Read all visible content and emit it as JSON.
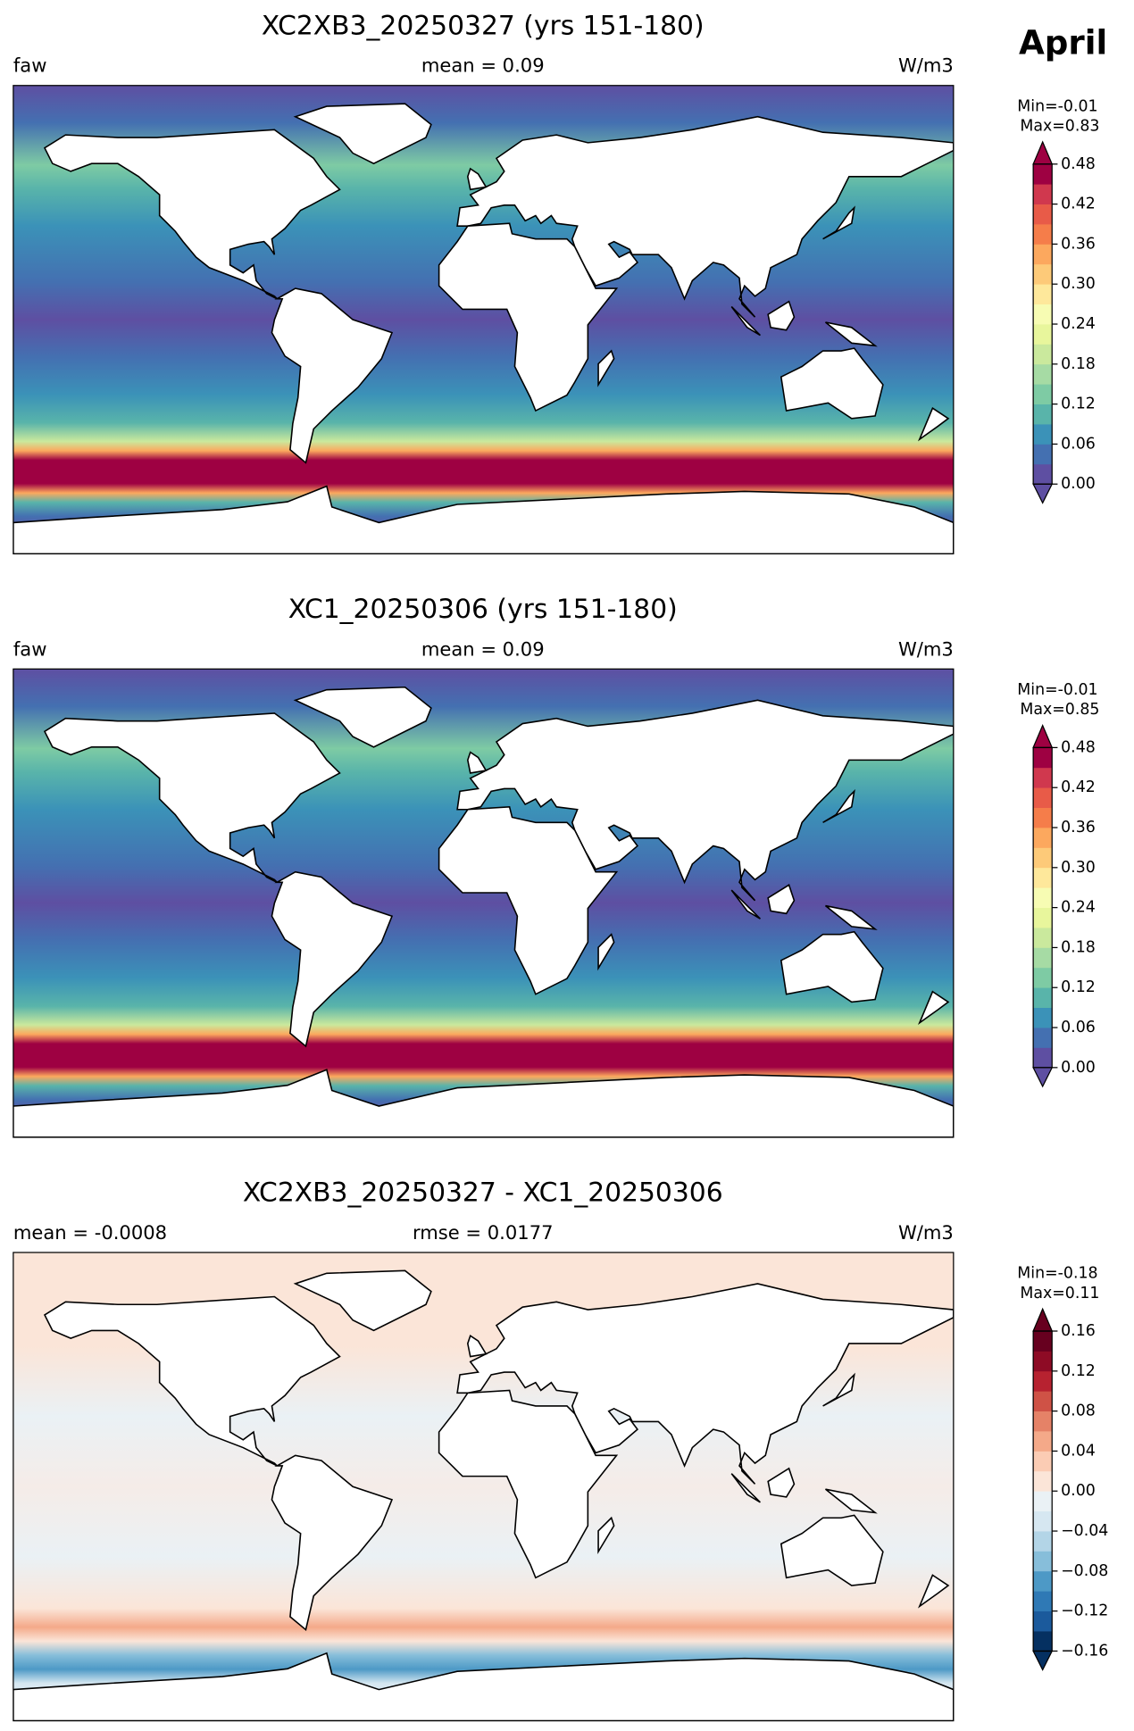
{
  "label": "April",
  "panels": [
    {
      "title": "XC2XB3_20250327 (yrs 151-180)",
      "left": "faw",
      "center": "mean = 0.09",
      "right": "W/m3",
      "min": "Min=-0.01",
      "max": "Max=0.83",
      "colorbar": {
        "lim": [
          0,
          0.48
        ],
        "ticks": [
          {
            "value": 0,
            "label": "0.00"
          },
          {
            "value": 0.06,
            "label": "0.06"
          },
          {
            "value": 0.12,
            "label": "0.12"
          },
          {
            "value": 0.18,
            "label": "0.18"
          },
          {
            "value": 0.24,
            "label": "0.24"
          },
          {
            "value": 0.3,
            "label": "0.30"
          },
          {
            "value": 0.36,
            "label": "0.36"
          },
          {
            "value": 0.42,
            "label": "0.42"
          },
          {
            "value": 0.48,
            "label": "0.48"
          }
        ],
        "colors": [
          "#5e4fa2",
          "#4470b1",
          "#3b92b8",
          "#59b4aa",
          "#7ecba4",
          "#a6dba4",
          "#cae99d",
          "#e8f69c",
          "#f7fcb3",
          "#fee89b",
          "#fdca79",
          "#fca85e",
          "#f57d4a",
          "#e85b48",
          "#d0384e",
          "#9e0142"
        ]
      }
    },
    {
      "title": "XC1_20250306 (yrs 151-180)",
      "left": "faw",
      "center": "mean = 0.09",
      "right": "W/m3",
      "min": "Min=-0.01",
      "max": "Max=0.85",
      "colorbar": {
        "lim": [
          0,
          0.48
        ],
        "ticks": [
          {
            "value": 0,
            "label": "0.00"
          },
          {
            "value": 0.06,
            "label": "0.06"
          },
          {
            "value": 0.12,
            "label": "0.12"
          },
          {
            "value": 0.18,
            "label": "0.18"
          },
          {
            "value": 0.24,
            "label": "0.24"
          },
          {
            "value": 0.3,
            "label": "0.30"
          },
          {
            "value": 0.36,
            "label": "0.36"
          },
          {
            "value": 0.42,
            "label": "0.42"
          },
          {
            "value": 0.48,
            "label": "0.48"
          }
        ],
        "colors": [
          "#5e4fa2",
          "#4470b1",
          "#3b92b8",
          "#59b4aa",
          "#7ecba4",
          "#a6dba4",
          "#cae99d",
          "#e8f69c",
          "#f7fcb3",
          "#fee89b",
          "#fdca79",
          "#fca85e",
          "#f57d4a",
          "#e85b48",
          "#d0384e",
          "#9e0142"
        ]
      }
    },
    {
      "title": "XC2XB3_20250327 - XC1_20250306",
      "left": "mean = -0.0008",
      "center": "rmse = 0.0177",
      "right": "W/m3",
      "min": "Min=-0.18",
      "max": "Max=0.11",
      "colorbar": {
        "lim": [
          -0.16,
          0.16
        ],
        "ticks": [
          {
            "value": -0.16,
            "label": "−0.16"
          },
          {
            "value": -0.12,
            "label": "−0.12"
          },
          {
            "value": -0.08,
            "label": "−0.08"
          },
          {
            "value": -0.04,
            "label": "−0.04"
          },
          {
            "value": 0,
            "label": "0.00"
          },
          {
            "value": 0.04,
            "label": "0.04"
          },
          {
            "value": 0.08,
            "label": "0.08"
          },
          {
            "value": 0.12,
            "label": "0.12"
          },
          {
            "value": 0.16,
            "label": "0.16"
          }
        ],
        "colors": [
          "#053061",
          "#1b5a9c",
          "#2f79b5",
          "#4d99c6",
          "#87beda",
          "#b3d5e7",
          "#d6e7f1",
          "#eaf1f5",
          "#fbe5d8",
          "#fbccb4",
          "#f4a989",
          "#e58267",
          "#cf5246",
          "#b72230",
          "#8e0b25",
          "#67001f"
        ]
      }
    }
  ]
}
